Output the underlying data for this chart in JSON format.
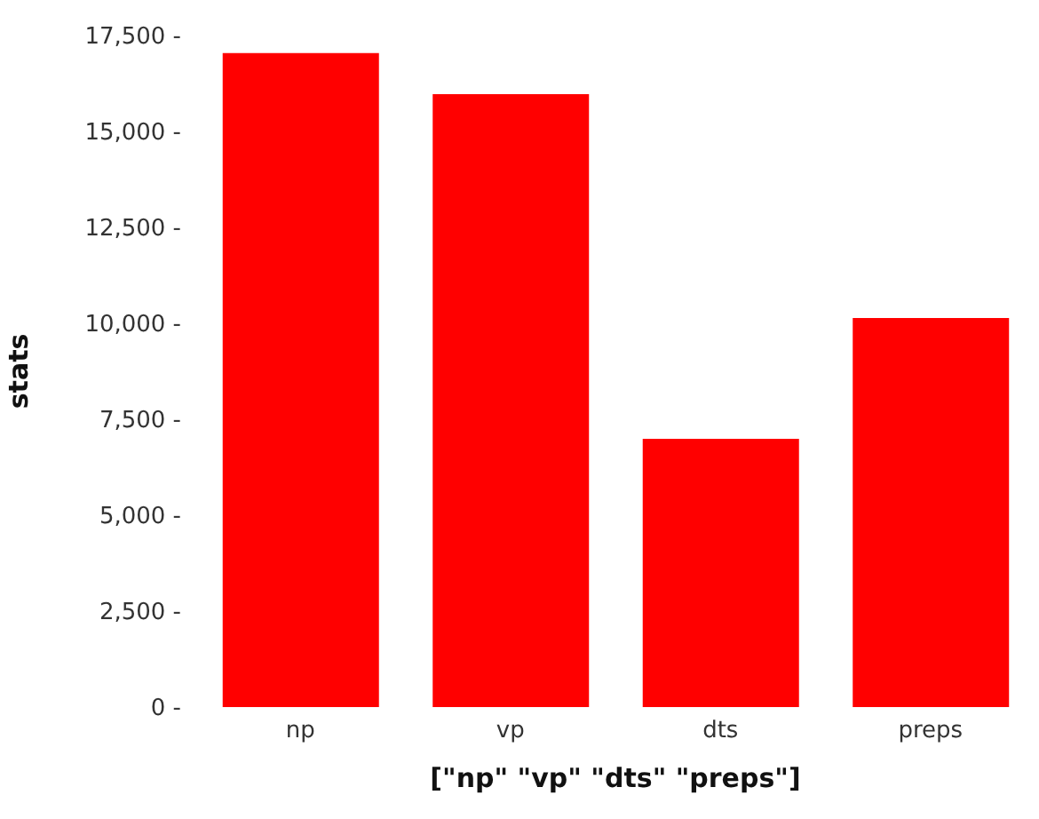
{
  "chart_data": {
    "type": "bar",
    "xlabel": "[\"np\" \"vp\" \"dts\" \"preps\"]",
    "ylabel": "stats",
    "categories": [
      "np",
      "vp",
      "dts",
      "preps"
    ],
    "values": [
      17040,
      15970,
      6990,
      10140
    ],
    "color": "#ff0000",
    "ylim": [
      0,
      17500
    ],
    "yticks": [
      {
        "value": 0,
        "label": "0 -"
      },
      {
        "value": 2500,
        "label": "2,500 -"
      },
      {
        "value": 5000,
        "label": "5,000 -"
      },
      {
        "value": 7500,
        "label": "7,500 -"
      },
      {
        "value": 10000,
        "label": "10,000 -"
      },
      {
        "value": 12500,
        "label": "12,500 -"
      },
      {
        "value": 15000,
        "label": "15,000 -"
      },
      {
        "value": 17500,
        "label": "17,500 -"
      }
    ],
    "grid": false
  }
}
